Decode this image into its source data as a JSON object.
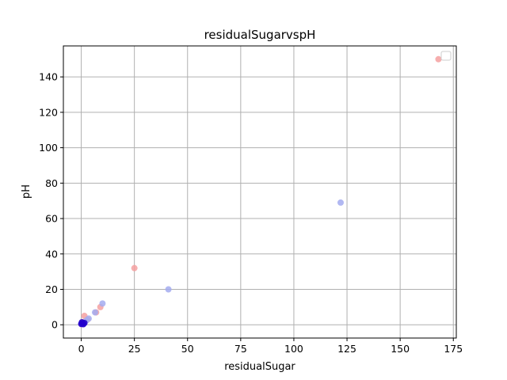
{
  "chart_data": {
    "type": "scatter",
    "title": "residualSugarvspH",
    "xlabel": "residualSugar",
    "ylabel": "pH",
    "xlim": [
      -8.4,
      176.4
    ],
    "ylim": [
      -7.5,
      157.5
    ],
    "xticks": [
      0,
      25,
      50,
      75,
      100,
      125,
      150,
      175
    ],
    "yticks": [
      0,
      20,
      40,
      60,
      80,
      100,
      120,
      140
    ],
    "grid": true,
    "legend": {
      "position": "top-right",
      "entries": []
    },
    "series": [
      {
        "color": "#f4a0a0",
        "alpha": 0.85,
        "points": [
          [
            168,
            150
          ],
          [
            25,
            32
          ],
          [
            9,
            10
          ],
          [
            7,
            7
          ],
          [
            1.5,
            5
          ],
          [
            3,
            3
          ],
          [
            0.5,
            1.5
          ],
          [
            1,
            0.5
          ],
          [
            0.2,
            0.2
          ]
        ]
      },
      {
        "color": "#a3acf0",
        "alpha": 0.85,
        "points": [
          [
            122,
            69
          ],
          [
            41,
            20
          ],
          [
            10,
            12
          ],
          [
            6.5,
            7
          ],
          [
            3.5,
            3.5
          ],
          [
            2.5,
            2.5
          ],
          [
            1,
            1
          ],
          [
            0.5,
            0.5
          ],
          [
            0.2,
            0.3
          ],
          [
            1.5,
            1.2
          ]
        ]
      },
      {
        "color": "#2200cc",
        "alpha": 0.9,
        "points": [
          [
            0,
            0.5
          ],
          [
            0.5,
            0.8
          ],
          [
            1,
            0.3
          ],
          [
            1.5,
            1
          ],
          [
            0.3,
            1.4
          ]
        ]
      }
    ]
  }
}
